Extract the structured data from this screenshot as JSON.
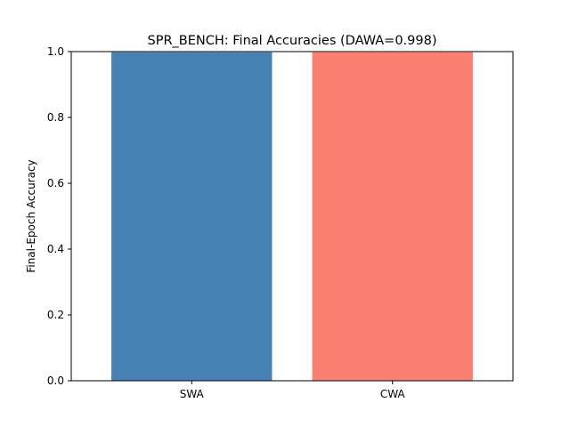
{
  "chart_data": {
    "type": "bar",
    "title": "SPR_BENCH: Final Accuracies (DAWA=0.998)",
    "xlabel": "",
    "ylabel": "Final-Epoch Accuracy",
    "categories": [
      "SWA",
      "CWA"
    ],
    "values": [
      0.998,
      0.998
    ],
    "colors": [
      "#4682b4",
      "#fa8072"
    ],
    "ylim": [
      0,
      1.0
    ],
    "yticks": [
      "0.0",
      "0.2",
      "0.4",
      "0.6",
      "0.8",
      "1.0"
    ],
    "grid": false,
    "legend": "none"
  }
}
